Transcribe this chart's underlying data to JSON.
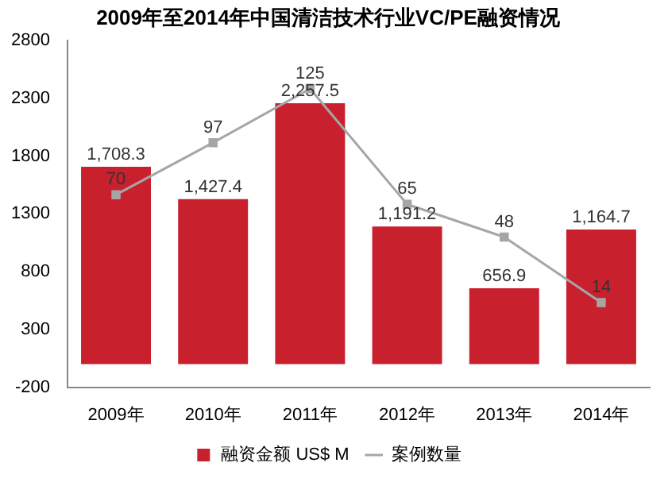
{
  "chart_data": {
    "type": "bar",
    "title": "2009年至2014年中国清洁技术行业VC/PE融资情况",
    "categories": [
      "2009年",
      "2010年",
      "2011年",
      "2012年",
      "2013年",
      "2014年"
    ],
    "series": [
      {
        "name": "融资金额 US$ M",
        "color": "#c9202e",
        "values": [
          1708.3,
          1427.4,
          2257.5,
          1191.2,
          656.9,
          1164.7
        ],
        "value_labels": [
          "1,708.3",
          "1,427.4",
          "2,257.5",
          "1,191.2",
          "656.9",
          "1,164.7"
        ]
      },
      {
        "name": "案例数量",
        "type": "line",
        "axis": "y2",
        "color": "#a6a6a6",
        "values": [
          70,
          97,
          125,
          65,
          48,
          14
        ],
        "value_labels": [
          "70",
          "97",
          "125",
          "65",
          "48",
          "14"
        ]
      }
    ],
    "ylim": [
      -200,
      2800
    ],
    "yticks": [
      -200,
      300,
      800,
      1300,
      1800,
      2300,
      2800
    ],
    "y2lim": [
      -30,
      150
    ],
    "legend": "bottom",
    "marker": "square",
    "grid": false
  }
}
